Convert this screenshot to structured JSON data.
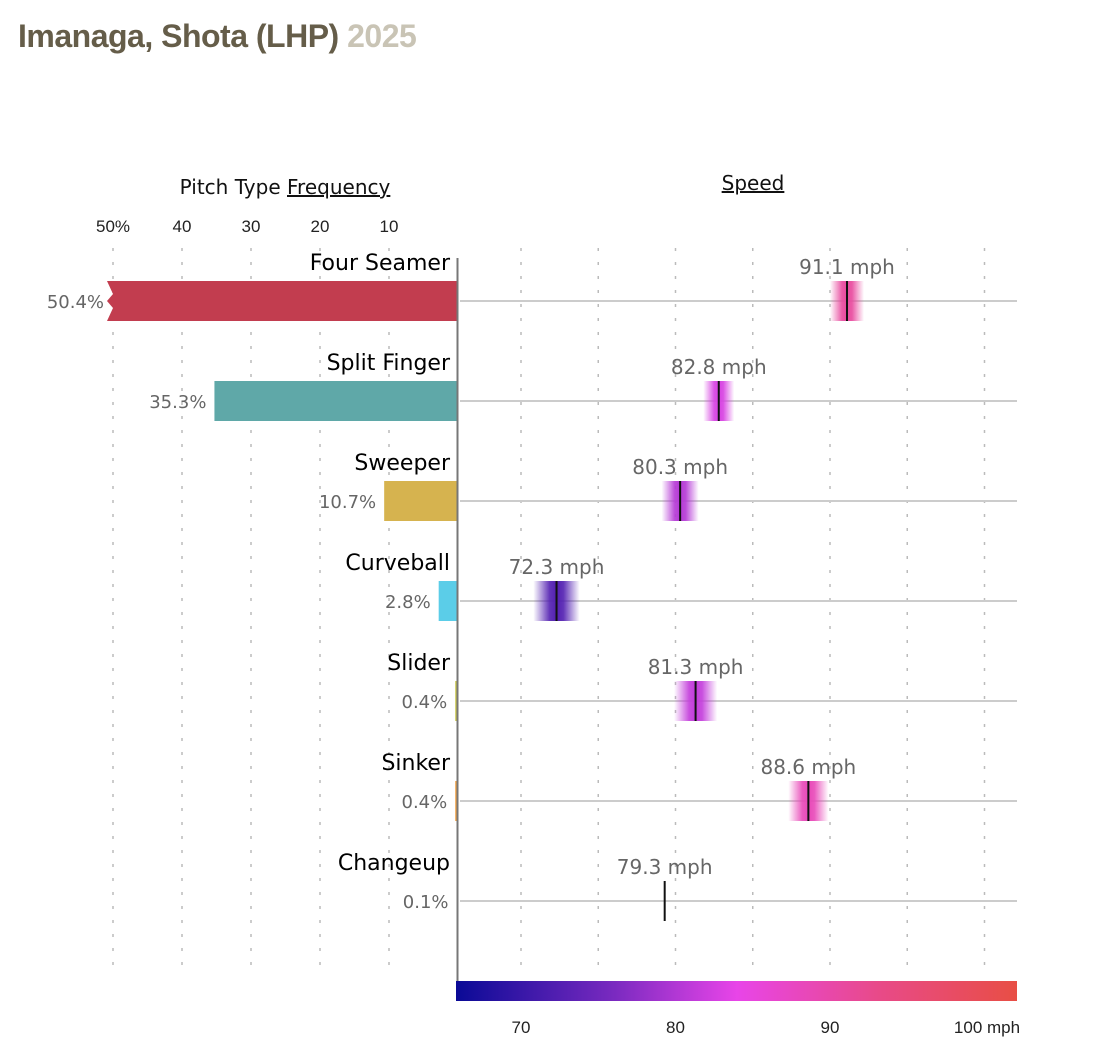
{
  "header": {
    "player": "Imanaga, Shota (LHP)",
    "season": "2025"
  },
  "chart_data": [
    {
      "type": "bar",
      "title": "Pitch Type Frequency",
      "title_plain": "Pitch Type ",
      "title_link": "Frequency",
      "orientation": "horizontal",
      "direction": "right-to-left",
      "xlim": [
        0,
        50
      ],
      "ticks": [
        50,
        40,
        30,
        20,
        10
      ],
      "tick_labels": [
        "50%",
        "40",
        "30",
        "20",
        "10"
      ],
      "grid": true,
      "categories": [
        "Four Seamer",
        "Split Finger",
        "Sweeper",
        "Curveball",
        "Slider",
        "Sinker",
        "Changeup"
      ],
      "values": [
        50.4,
        35.3,
        10.7,
        2.8,
        0.4,
        0.4,
        0.1
      ],
      "value_labels": [
        "50.4%",
        "35.3%",
        "10.7%",
        "2.8%",
        "0.4%",
        "0.4%",
        "0.1%"
      ],
      "colors": [
        "#c23d4f",
        "#5fa8a8",
        "#d6b34f",
        "#5bcde8",
        "#c9c64a",
        "#f0a040",
        "#6abf5a"
      ],
      "clipped_first_bar": true
    },
    {
      "type": "scatter",
      "title": "Speed",
      "categories": [
        "Four Seamer",
        "Split Finger",
        "Sweeper",
        "Curveball",
        "Slider",
        "Sinker",
        "Changeup"
      ],
      "values": [
        91.1,
        82.8,
        80.3,
        72.3,
        81.3,
        88.6,
        79.3
      ],
      "value_labels": [
        "91.1 mph",
        "82.8 mph",
        "80.3 mph",
        "72.3 mph",
        "81.3 mph",
        "88.6 mph",
        "79.3 mph"
      ],
      "spread_mph": [
        1.1,
        1.0,
        1.2,
        1.5,
        1.4,
        1.3,
        0
      ],
      "xlim": [
        65.7,
        102.2
      ],
      "grid_ticks": [
        70,
        75,
        80,
        85,
        90,
        95,
        100
      ],
      "scale_labels": [
        "70",
        "80",
        "90",
        "100 mph"
      ],
      "scale_values": [
        70,
        80,
        90,
        100
      ],
      "colorscale": {
        "range": [
          65.7,
          102.2
        ],
        "stops": [
          "#0a0a96",
          "#7a2ac0",
          "#e845e8",
          "#e84a8a",
          "#e84e45"
        ],
        "stop_values": [
          65.7,
          76,
          84,
          93,
          102.2
        ]
      }
    }
  ],
  "labels": {
    "speed_title": "Speed"
  }
}
